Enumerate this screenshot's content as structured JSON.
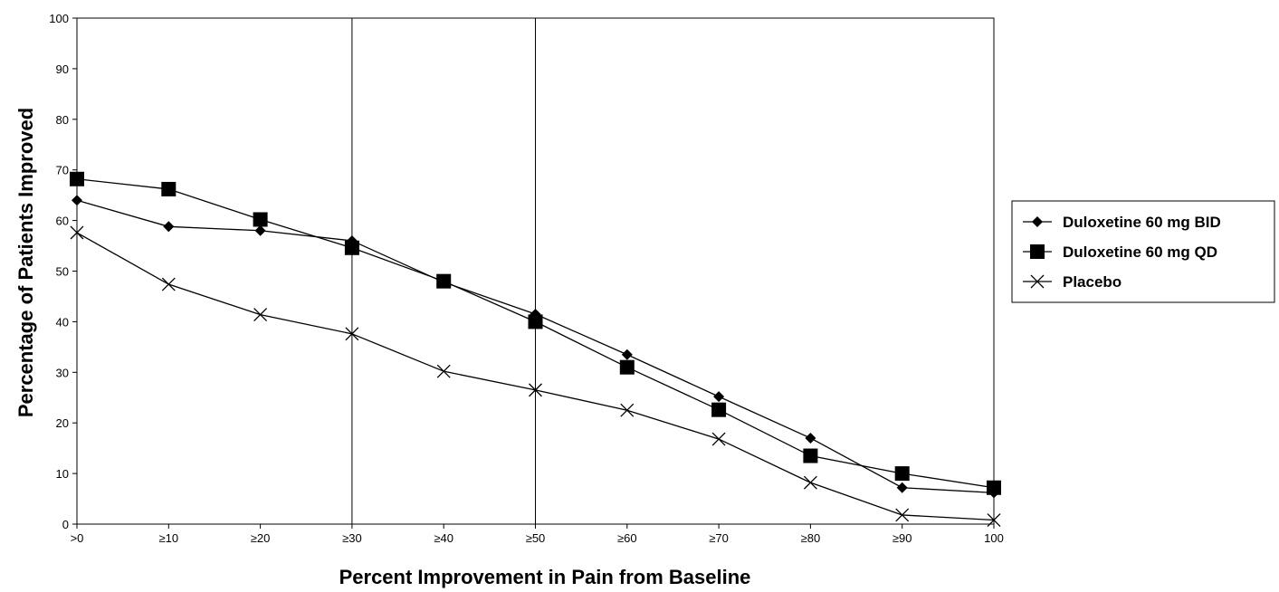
{
  "chart_data": {
    "type": "line",
    "title": "",
    "xlabel": "Percent Improvement in Pain from Baseline",
    "ylabel": "Percentage of Patients Improved",
    "categories": [
      ">0",
      "≥10",
      "≥20",
      "≥30",
      "≥40",
      "≥50",
      "≥60",
      "≥70",
      "≥80",
      "≥90",
      "100"
    ],
    "yticks": [
      "0",
      "10",
      "20",
      "30",
      "40",
      "50",
      "60",
      "70",
      "80",
      "90",
      "100"
    ],
    "ylim": [
      0,
      100
    ],
    "grid": false,
    "reference_lines_at": [
      "≥30",
      "≥50"
    ],
    "legend_position": "right",
    "series": [
      {
        "name": "Duloxetine 60 mg BID",
        "marker": "diamond",
        "color": "#000000",
        "values": [
          64,
          58.8,
          58,
          56,
          47.8,
          41.5,
          33.5,
          25.2,
          17,
          7.2,
          6.2
        ]
      },
      {
        "name": "Duloxetine 60 mg QD",
        "marker": "square",
        "color": "#000000",
        "values": [
          68.2,
          66.2,
          60.2,
          54.6,
          48,
          40,
          31,
          22.6,
          13.5,
          10,
          7.2
        ]
      },
      {
        "name": "Placebo",
        "marker": "x",
        "color": "#000000",
        "values": [
          57.6,
          47.4,
          41.4,
          37.6,
          30.2,
          26.5,
          22.5,
          16.8,
          8.2,
          1.8,
          0.8
        ]
      }
    ]
  }
}
